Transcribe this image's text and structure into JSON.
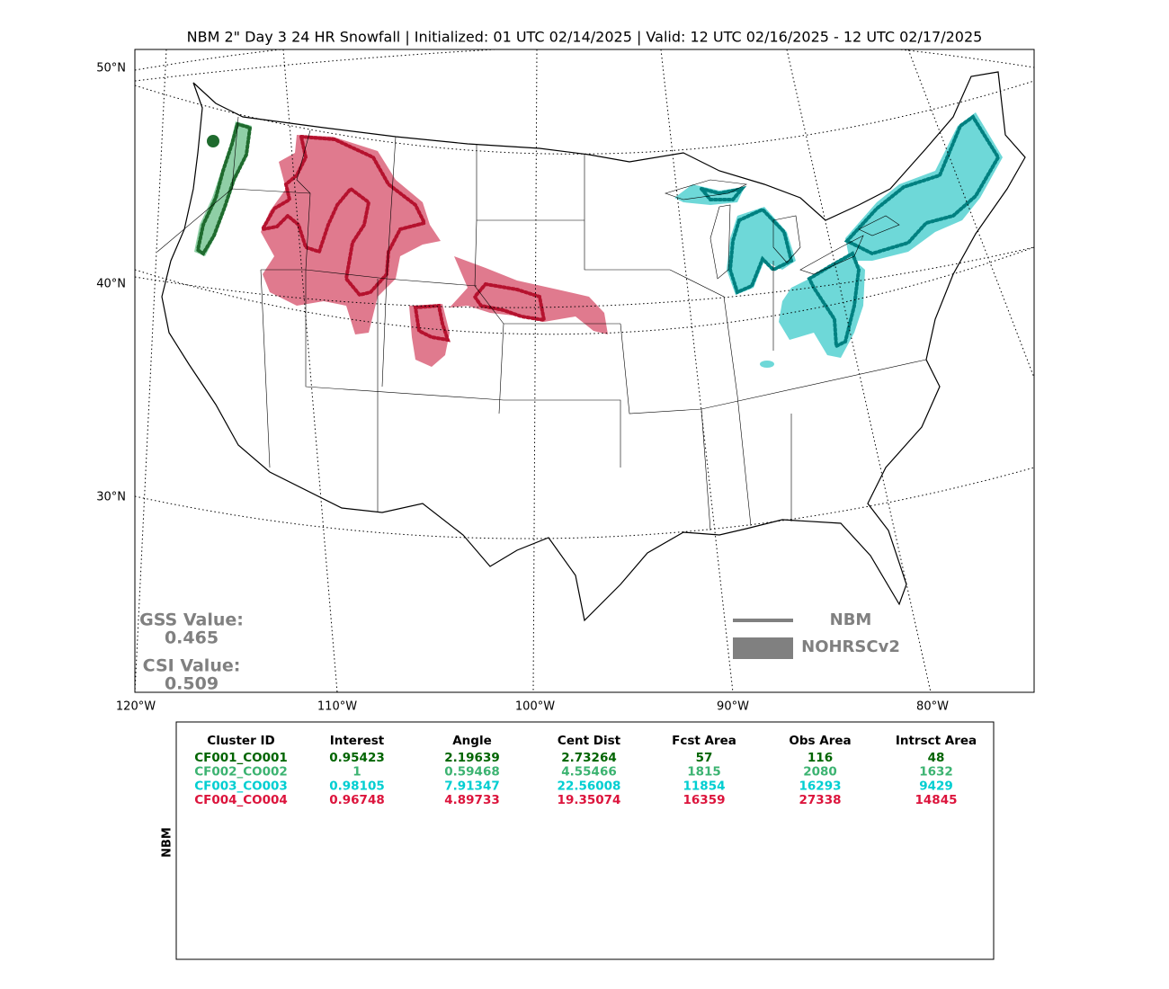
{
  "title": "NBM 2\" Day 3 24 HR Snowfall | Initialized: 01 UTC 02/14/2025 | Valid: 12 UTC 02/16/2025 - 12 UTC 02/17/2025",
  "lat_labels": [
    "50°N",
    "40°N",
    "30°N"
  ],
  "lon_labels": [
    "120°W",
    "110°W",
    "100°W",
    "90°W",
    "80°W"
  ],
  "scores": {
    "gss_label": "GSS Value:",
    "gss_value": "0.465",
    "csi_label": "CSI Value:",
    "csi_value": "0.509"
  },
  "legend": {
    "line": "NBM",
    "fill": "NOHRSCv2"
  },
  "table": {
    "side_label": "NBM",
    "header": [
      "Cluster ID",
      "Interest",
      "Angle",
      "Cent Dist",
      "Fcst Area",
      "Obs Area",
      "Intrsct Area"
    ],
    "row_colors": [
      "#006400",
      "#3cb371",
      "#00ced1",
      "#dc143c"
    ],
    "rows": [
      [
        "CF001_CO001",
        "0.95423",
        "2.19639",
        "2.73264",
        "57",
        "116",
        "48"
      ],
      [
        "CF002_CO002",
        "1",
        "0.59468",
        "4.55466",
        "1815",
        "2080",
        "1632"
      ],
      [
        "CF003_CO003",
        "0.98105",
        "7.91347",
        "22.56008",
        "11854",
        "16293",
        "9429"
      ],
      [
        "CF004_CO004",
        "0.96748",
        "4.89733",
        "19.35074",
        "16359",
        "27338",
        "14845"
      ]
    ]
  }
}
